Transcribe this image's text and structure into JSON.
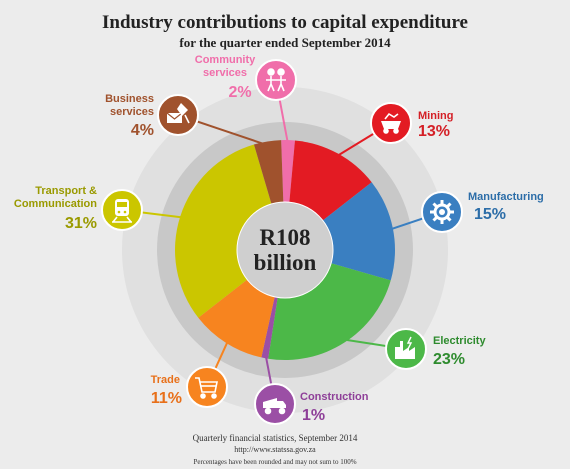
{
  "chart_data": {
    "type": "pie",
    "title": "Industry contributions to capital expenditure",
    "subtitle": "for the quarter ended September 2014",
    "center_label": [
      "R108",
      "billion"
    ],
    "unit": "%",
    "slices": [
      {
        "label": "Community services",
        "value": 2,
        "value_label": "2%",
        "color": "#f06eaa",
        "icon": "people-icon"
      },
      {
        "label": "Mining",
        "value": 13,
        "value_label": "13%",
        "color": "#e31b23",
        "icon": "mine-cart-icon"
      },
      {
        "label": "Manufacturing",
        "value": 15,
        "value_label": "15%",
        "color": "#3a7fc1",
        "icon": "gear-icon"
      },
      {
        "label": "Electricity",
        "value": 23,
        "value_label": "23%",
        "color": "#4cb848",
        "icon": "power-plant-icon"
      },
      {
        "label": "Construction",
        "value": 1,
        "value_label": "1%",
        "color": "#9b4fa5",
        "icon": "dump-truck-icon"
      },
      {
        "label": "Trade",
        "value": 11,
        "value_label": "11%",
        "color": "#f7841f",
        "icon": "shopping-cart-icon"
      },
      {
        "label": "Transport & Communication",
        "value": 31,
        "value_label": "31%",
        "color": "#cbc600",
        "icon": "train-icon"
      },
      {
        "label": "Business services",
        "value": 4,
        "value_label": "4%",
        "color": "#a0522d",
        "icon": "envelope-icon"
      }
    ],
    "footer": [
      "Quarterly financial statistics, September 2014",
      "http://www.statssa.gov.za",
      "Percentages have been rounded and may not sum to 100%"
    ]
  }
}
